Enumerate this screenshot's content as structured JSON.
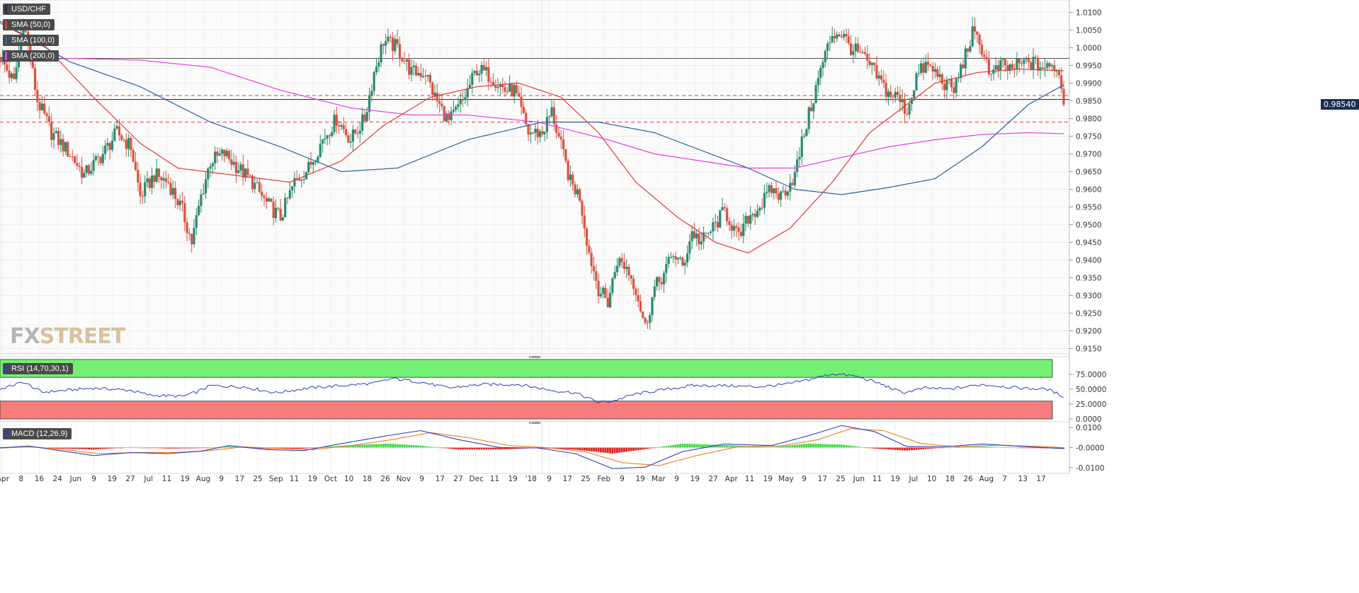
{
  "instrument": "USD/CHF",
  "indicators": {
    "sma50": {
      "label": "SMA (50,0)",
      "color": "#e53935"
    },
    "sma100": {
      "label": "SMA (100,0)",
      "color": "#2e5fa8"
    },
    "sma200": {
      "label": "SMA (200,0)",
      "color": "#e83ee8"
    },
    "rsi": {
      "label": "RSI (14,70,30,1)",
      "color": "#2b3fc4"
    },
    "macd": {
      "label": "MACD (12,26,9)",
      "macd_color": "#2b3fc4",
      "signal_color": "#f07c1e"
    }
  },
  "watermark": {
    "text_a": "FX",
    "text_b": "STREET"
  },
  "last_price": "0.98540",
  "chart_data": {
    "type": "candlestick",
    "price_axis": {
      "ylim": [
        0.9135,
        1.0135
      ],
      "ticks": [
        "1.0100",
        "1.0050",
        "1.0000",
        "0.9950",
        "0.9900",
        "0.9850",
        "0.9800",
        "0.9750",
        "0.9700",
        "0.9650",
        "0.9600",
        "0.9550",
        "0.9500",
        "0.9450",
        "0.9400",
        "0.9350",
        "0.9300",
        "0.9250",
        "0.9200",
        "0.9150"
      ]
    },
    "date_labels": [
      "Apr",
      "8",
      "16",
      "24",
      "Jun",
      "9",
      "19",
      "27",
      "Jul",
      "11",
      "19",
      "Aug",
      "9",
      "17",
      "25",
      "Sep",
      "11",
      "19",
      "Oct",
      "10",
      "18",
      "26",
      "Nov",
      "9",
      "17",
      "27",
      "Dec",
      "11",
      "19",
      "'18",
      "9",
      "17",
      "25",
      "Feb",
      "9",
      "19",
      "Mar",
      "9",
      "19",
      "27",
      "Apr",
      "11",
      "19",
      "May",
      "9",
      "17",
      "25",
      "Jun",
      "11",
      "19",
      "Jul",
      "10",
      "18",
      "26",
      "Aug",
      "7",
      "13",
      "17"
    ],
    "horizontal_levels": [
      {
        "price": 0.997,
        "style": "solid",
        "color": "#555555"
      },
      {
        "price": 0.9865,
        "style": "dashed",
        "color": "#e53935"
      },
      {
        "price": 0.9854,
        "style": "solid",
        "color": "#1c2f55"
      },
      {
        "price": 0.979,
        "style": "dashed",
        "color": "#e53935"
      }
    ],
    "close_path": [
      [
        0,
        0.9975
      ],
      [
        6,
        0.99
      ],
      [
        10,
        1.008
      ],
      [
        16,
        0.985
      ],
      [
        22,
        0.976
      ],
      [
        30,
        0.97
      ],
      [
        36,
        0.964
      ],
      [
        44,
        0.97
      ],
      [
        50,
        0.976
      ],
      [
        56,
        0.972
      ],
      [
        60,
        0.958
      ],
      [
        66,
        0.964
      ],
      [
        72,
        0.962
      ],
      [
        78,
        0.954
      ],
      [
        82,
        0.945
      ],
      [
        86,
        0.958
      ],
      [
        90,
        0.968
      ],
      [
        96,
        0.97
      ],
      [
        102,
        0.966
      ],
      [
        108,
        0.962
      ],
      [
        114,
        0.956
      ],
      [
        120,
        0.952
      ],
      [
        126,
        0.962
      ],
      [
        132,
        0.966
      ],
      [
        138,
        0.974
      ],
      [
        144,
        0.98
      ],
      [
        150,
        0.974
      ],
      [
        156,
        0.98
      ],
      [
        160,
        0.993
      ],
      [
        164,
        1.002
      ],
      [
        170,
        1.0
      ],
      [
        176,
        0.993
      ],
      [
        182,
        0.993
      ],
      [
        186,
        0.986
      ],
      [
        192,
        0.979
      ],
      [
        198,
        0.985
      ],
      [
        204,
        0.994
      ],
      [
        210,
        0.992
      ],
      [
        216,
        0.988
      ],
      [
        220,
        0.988
      ],
      [
        226,
        0.976
      ],
      [
        232,
        0.976
      ],
      [
        236,
        0.982
      ],
      [
        240,
        0.972
      ],
      [
        244,
        0.962
      ],
      [
        248,
        0.958
      ],
      [
        252,
        0.942
      ],
      [
        256,
        0.932
      ],
      [
        260,
        0.928
      ],
      [
        264,
        0.94
      ],
      [
        268,
        0.938
      ],
      [
        272,
        0.932
      ],
      [
        276,
        0.921
      ],
      [
        280,
        0.932
      ],
      [
        284,
        0.936
      ],
      [
        288,
        0.942
      ],
      [
        292,
        0.938
      ],
      [
        296,
        0.948
      ],
      [
        300,
        0.945
      ],
      [
        306,
        0.95
      ],
      [
        310,
        0.954
      ],
      [
        316,
        0.946
      ],
      [
        320,
        0.952
      ],
      [
        326,
        0.956
      ],
      [
        330,
        0.96
      ],
      [
        334,
        0.958
      ],
      [
        340,
        0.964
      ],
      [
        344,
        0.976
      ],
      [
        348,
        0.986
      ],
      [
        352,
        0.996
      ],
      [
        356,
        1.004
      ],
      [
        360,
        1.004
      ],
      [
        364,
        1.0
      ],
      [
        368,
        0.998
      ],
      [
        372,
        0.995
      ],
      [
        376,
        0.991
      ],
      [
        380,
        0.987
      ],
      [
        384,
        0.986
      ],
      [
        388,
        0.982
      ],
      [
        392,
        0.992
      ],
      [
        396,
        0.995
      ],
      [
        400,
        0.993
      ],
      [
        404,
        0.99
      ],
      [
        408,
        0.988
      ],
      [
        412,
        0.996
      ],
      [
        416,
        1.004
      ],
      [
        420,
        1.0
      ],
      [
        424,
        0.992
      ],
      [
        428,
        0.995
      ],
      [
        432,
        0.994
      ],
      [
        436,
        0.995
      ],
      [
        440,
        0.996
      ],
      [
        444,
        0.995
      ],
      [
        448,
        0.994
      ],
      [
        452,
        0.995
      ],
      [
        455,
        0.9854
      ]
    ],
    "sma50_path": [
      [
        0,
        1.007
      ],
      [
        20,
        1.0
      ],
      [
        40,
        0.986
      ],
      [
        60,
        0.973
      ],
      [
        76,
        0.966
      ],
      [
        100,
        0.964
      ],
      [
        124,
        0.962
      ],
      [
        146,
        0.968
      ],
      [
        164,
        0.978
      ],
      [
        184,
        0.986
      ],
      [
        204,
        0.989
      ],
      [
        222,
        0.99
      ],
      [
        240,
        0.986
      ],
      [
        256,
        0.976
      ],
      [
        272,
        0.962
      ],
      [
        290,
        0.952
      ],
      [
        306,
        0.945
      ],
      [
        320,
        0.942
      ],
      [
        338,
        0.949
      ],
      [
        356,
        0.962
      ],
      [
        372,
        0.976
      ],
      [
        386,
        0.983
      ],
      [
        400,
        0.99
      ],
      [
        418,
        0.993
      ],
      [
        436,
        0.994
      ],
      [
        455,
        0.9935
      ]
    ],
    "sma100_path": [
      [
        0,
        1.0075
      ],
      [
        30,
        0.996
      ],
      [
        60,
        0.989
      ],
      [
        90,
        0.979
      ],
      [
        120,
        0.972
      ],
      [
        146,
        0.965
      ],
      [
        170,
        0.966
      ],
      [
        200,
        0.974
      ],
      [
        232,
        0.979
      ],
      [
        256,
        0.979
      ],
      [
        280,
        0.976
      ],
      [
        300,
        0.971
      ],
      [
        320,
        0.966
      ],
      [
        340,
        0.96
      ],
      [
        360,
        0.9585
      ],
      [
        380,
        0.9605
      ],
      [
        400,
        0.963
      ],
      [
        420,
        0.972
      ],
      [
        440,
        0.984
      ],
      [
        455,
        0.9895
      ]
    ],
    "sma200_path": [
      [
        0,
        0.996
      ],
      [
        30,
        0.997
      ],
      [
        60,
        0.9965
      ],
      [
        90,
        0.9945
      ],
      [
        120,
        0.988
      ],
      [
        150,
        0.983
      ],
      [
        176,
        0.981
      ],
      [
        200,
        0.981
      ],
      [
        230,
        0.979
      ],
      [
        260,
        0.974
      ],
      [
        280,
        0.97
      ],
      [
        300,
        0.968
      ],
      [
        320,
        0.966
      ],
      [
        340,
        0.966
      ],
      [
        360,
        0.969
      ],
      [
        380,
        0.972
      ],
      [
        400,
        0.974
      ],
      [
        420,
        0.9755
      ],
      [
        440,
        0.976
      ],
      [
        455,
        0.9757
      ]
    ],
    "rsi": {
      "ylim": [
        0,
        100
      ],
      "ticks": [
        "75.0000",
        "50.0000",
        "25.0000",
        "0.0000"
      ],
      "overbought": 70,
      "oversold": 30,
      "path": [
        [
          0,
          50
        ],
        [
          10,
          62
        ],
        [
          18,
          45
        ],
        [
          28,
          48
        ],
        [
          40,
          52
        ],
        [
          56,
          48
        ],
        [
          64,
          40
        ],
        [
          78,
          38
        ],
        [
          84,
          45
        ],
        [
          90,
          56
        ],
        [
          104,
          54
        ],
        [
          118,
          44
        ],
        [
          132,
          52
        ],
        [
          146,
          56
        ],
        [
          160,
          60
        ],
        [
          168,
          68
        ],
        [
          180,
          62
        ],
        [
          192,
          52
        ],
        [
          206,
          58
        ],
        [
          222,
          58
        ],
        [
          236,
          48
        ],
        [
          246,
          44
        ],
        [
          256,
          28
        ],
        [
          262,
          30
        ],
        [
          272,
          42
        ],
        [
          282,
          48
        ],
        [
          296,
          56
        ],
        [
          310,
          56
        ],
        [
          324,
          54
        ],
        [
          336,
          58
        ],
        [
          346,
          66
        ],
        [
          356,
          76
        ],
        [
          366,
          72
        ],
        [
          376,
          60
        ],
        [
          386,
          44
        ],
        [
          396,
          52
        ],
        [
          406,
          50
        ],
        [
          420,
          58
        ],
        [
          436,
          52
        ],
        [
          448,
          50
        ],
        [
          455,
          38
        ]
      ]
    },
    "macd": {
      "ylim": [
        -0.0115,
        0.0115
      ],
      "ticks": [
        "0.0100",
        "-0.0000",
        "-0.0100"
      ],
      "macd_path": [
        [
          0,
          -0.0002
        ],
        [
          12,
          0.0008
        ],
        [
          24,
          -0.0012
        ],
        [
          40,
          -0.004
        ],
        [
          56,
          -0.0025
        ],
        [
          72,
          -0.003
        ],
        [
          86,
          -0.0018
        ],
        [
          98,
          0.001
        ],
        [
          114,
          -0.001
        ],
        [
          130,
          -0.0015
        ],
        [
          146,
          0.002
        ],
        [
          166,
          0.006
        ],
        [
          180,
          0.0085
        ],
        [
          196,
          0.004
        ],
        [
          214,
          0.0
        ],
        [
          230,
          -0.0002
        ],
        [
          246,
          -0.003
        ],
        [
          262,
          -0.0105
        ],
        [
          276,
          -0.0098
        ],
        [
          292,
          -0.002
        ],
        [
          310,
          0.0018
        ],
        [
          330,
          0.001
        ],
        [
          346,
          0.006
        ],
        [
          360,
          0.011
        ],
        [
          374,
          0.008
        ],
        [
          388,
          0.0005
        ],
        [
          404,
          0.0004
        ],
        [
          420,
          0.0018
        ],
        [
          440,
          0.0004
        ],
        [
          455,
          -0.0005
        ]
      ],
      "signal_path": [
        [
          0,
          0.0
        ],
        [
          14,
          0.0003
        ],
        [
          26,
          -0.0008
        ],
        [
          42,
          -0.003
        ],
        [
          58,
          -0.0025
        ],
        [
          74,
          -0.0025
        ],
        [
          90,
          -0.0015
        ],
        [
          104,
          0.0004
        ],
        [
          118,
          -0.0004
        ],
        [
          134,
          -0.001
        ],
        [
          150,
          0.001
        ],
        [
          168,
          0.004
        ],
        [
          184,
          0.0075
        ],
        [
          200,
          0.005
        ],
        [
          218,
          0.001
        ],
        [
          234,
          0.0
        ],
        [
          250,
          -0.002
        ],
        [
          266,
          -0.0075
        ],
        [
          282,
          -0.009
        ],
        [
          298,
          -0.004
        ],
        [
          316,
          0.0005
        ],
        [
          334,
          0.0008
        ],
        [
          350,
          0.004
        ],
        [
          364,
          0.0095
        ],
        [
          378,
          0.0085
        ],
        [
          394,
          0.002
        ],
        [
          410,
          0.0004
        ],
        [
          426,
          0.0012
        ],
        [
          444,
          0.0006
        ],
        [
          455,
          0.0
        ]
      ],
      "hist_path": [
        [
          0,
          -0.0002
        ],
        [
          12,
          0.0005
        ],
        [
          24,
          -0.0004
        ],
        [
          40,
          -0.001
        ],
        [
          56,
          0.0002
        ],
        [
          72,
          -0.0005
        ],
        [
          86,
          -0.0003
        ],
        [
          98,
          0.0006
        ],
        [
          114,
          -0.0006
        ],
        [
          130,
          -0.0005
        ],
        [
          146,
          0.001
        ],
        [
          166,
          0.002
        ],
        [
          180,
          0.001
        ],
        [
          196,
          -0.001
        ],
        [
          214,
          -0.001
        ],
        [
          230,
          -0.0002
        ],
        [
          246,
          -0.001
        ],
        [
          262,
          -0.003
        ],
        [
          276,
          -0.0008
        ],
        [
          292,
          0.002
        ],
        [
          310,
          0.0013
        ],
        [
          330,
          0.0002
        ],
        [
          346,
          0.002
        ],
        [
          360,
          0.0015
        ],
        [
          374,
          -0.0005
        ],
        [
          388,
          -0.0015
        ],
        [
          404,
          0.0
        ],
        [
          420,
          0.0006
        ],
        [
          440,
          -0.0002
        ],
        [
          455,
          -0.0005
        ]
      ]
    }
  }
}
